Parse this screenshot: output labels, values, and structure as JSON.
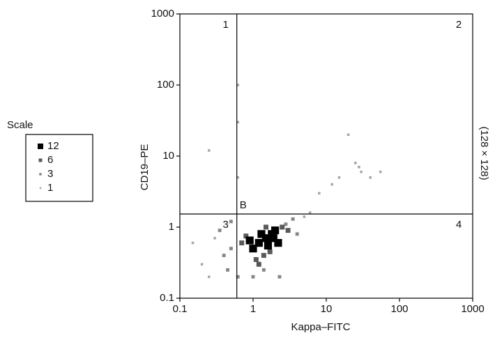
{
  "chart_data": {
    "type": "scatter",
    "x_label": "Kappa–FITC",
    "y_label": "CD19–PE",
    "side_label": "(128 × 128)",
    "log_x": true,
    "log_y": true,
    "xlim": [
      0.1,
      1000
    ],
    "ylim": [
      0.1,
      1000
    ],
    "xticks": [
      0.1,
      1,
      10,
      100,
      1000
    ],
    "yticks": [
      0.1,
      1,
      10,
      100,
      1000
    ],
    "gate": {
      "x": 0.6,
      "y": 1.53
    },
    "quadrant_labels": [
      "1",
      "2",
      "3",
      "4"
    ],
    "gate_label": "B",
    "legend_title": "Scale",
    "legend_levels": [
      12,
      6,
      3,
      1
    ],
    "series": [
      {
        "color": "#000000",
        "x": [
          1.2,
          1.5,
          1.8,
          2.0,
          1.0,
          0.9,
          1.4,
          2.5,
          1.6,
          1.3,
          0.8,
          2.2,
          1.1,
          1.7,
          3.0,
          0.7,
          1.9,
          2.8,
          1.5,
          1.2,
          0.5,
          0.4,
          0.3,
          0.2,
          0.15,
          0.25,
          0.45,
          0.35,
          0.5,
          4,
          5,
          6,
          3.5,
          8,
          15,
          20,
          25,
          30,
          40,
          55,
          12,
          28,
          0.25,
          0.62,
          0.62,
          0.62,
          0.62,
          2.3,
          1.4,
          1.0
        ],
        "values": [
          0.6,
          0.7,
          0.8,
          0.9,
          0.5,
          0.65,
          0.4,
          1.0,
          0.55,
          0.8,
          0.75,
          0.6,
          0.35,
          0.45,
          0.9,
          0.6,
          0.7,
          1.1,
          1.0,
          0.3,
          0.5,
          0.4,
          0.7,
          0.3,
          0.6,
          0.2,
          0.25,
          0.9,
          1.2,
          0.8,
          1.4,
          1.6,
          1.3,
          3,
          5,
          20,
          8,
          6,
          5,
          6,
          4,
          7,
          12,
          100,
          30,
          5,
          0.2,
          0.2,
          0.25,
          0.2
        ],
        "density": [
          12,
          12,
          12,
          12,
          12,
          12,
          6,
          6,
          12,
          12,
          6,
          12,
          6,
          6,
          6,
          6,
          12,
          3,
          6,
          6,
          3,
          3,
          1,
          1,
          1,
          1,
          3,
          3,
          3,
          3,
          1,
          1,
          3,
          1,
          1,
          1,
          1,
          1,
          1,
          1,
          1,
          1,
          1,
          1,
          1,
          1,
          3,
          3,
          3,
          3
        ]
      }
    ]
  }
}
